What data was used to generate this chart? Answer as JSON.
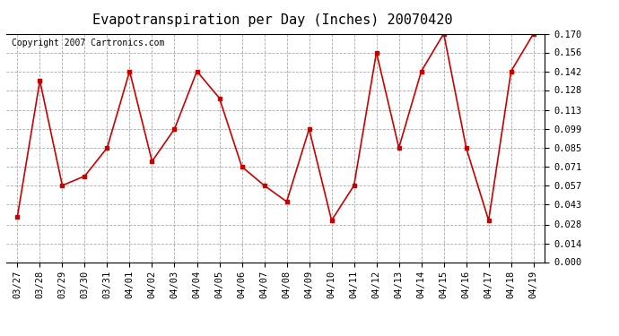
{
  "title": "Evapotranspiration per Day (Inches) 20070420",
  "copyright": "Copyright 2007 Cartronics.com",
  "x_labels": [
    "03/27",
    "03/28",
    "03/29",
    "03/30",
    "03/31",
    "04/01",
    "04/02",
    "04/03",
    "04/04",
    "04/05",
    "04/06",
    "04/07",
    "04/08",
    "04/09",
    "04/10",
    "04/11",
    "04/12",
    "04/13",
    "04/14",
    "04/15",
    "04/16",
    "04/17",
    "04/18",
    "04/19"
  ],
  "y_values": [
    0.034,
    0.135,
    0.057,
    0.064,
    0.085,
    0.142,
    0.075,
    0.099,
    0.142,
    0.122,
    0.071,
    0.057,
    0.045,
    0.099,
    0.031,
    0.057,
    0.156,
    0.085,
    0.142,
    0.17,
    0.085,
    0.031,
    0.142,
    0.17
  ],
  "line_color": "#cc0000",
  "marker": "s",
  "marker_size": 3,
  "ylim": [
    0.0,
    0.17
  ],
  "yticks": [
    0.0,
    0.014,
    0.028,
    0.043,
    0.057,
    0.071,
    0.085,
    0.099,
    0.113,
    0.128,
    0.142,
    0.156,
    0.17
  ],
  "background_color": "#ffffff",
  "grid_color": "#aaaaaa",
  "title_fontsize": 11,
  "tick_fontsize": 7.5,
  "copyright_fontsize": 7
}
